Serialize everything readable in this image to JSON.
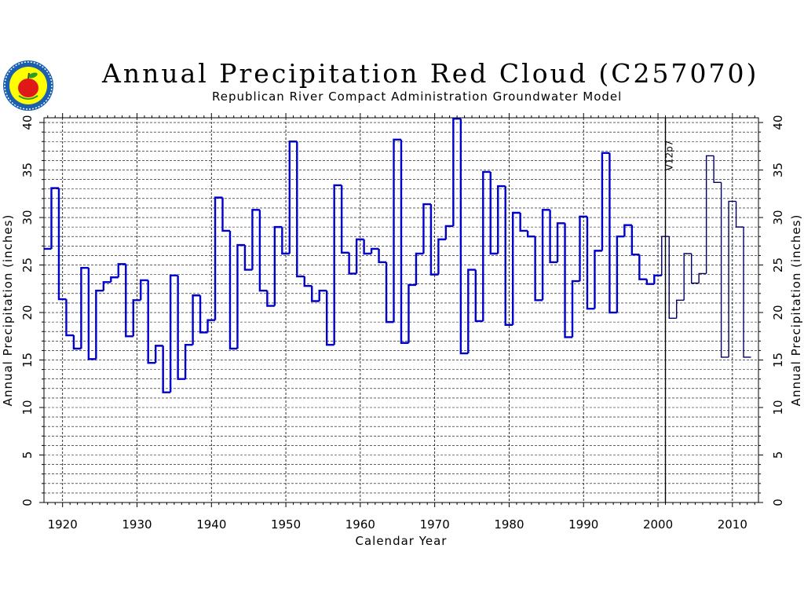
{
  "header": {
    "title": "Annual Precipitation Red Cloud (C257070)",
    "subtitle": "Republican River Compact Administration Groundwater Model"
  },
  "logo": {
    "icon": "apple-state-seal-icon"
  },
  "chart_data": {
    "type": "line",
    "step": true,
    "xlabel": "Calendar Year",
    "ylabel_left": "Annual Precipitation (inches)",
    "ylabel_right": "Annual Precipitation (inches)",
    "xlim": [
      1917.5,
      2013.5
    ],
    "ylim": [
      0,
      40.5
    ],
    "x_ticks": [
      1920,
      1930,
      1940,
      1950,
      1960,
      1970,
      1980,
      1990,
      2000,
      2010
    ],
    "y_ticks": [
      0,
      5,
      10,
      15,
      20,
      25,
      30,
      35,
      40
    ],
    "grid": true,
    "annotation": {
      "text": "V12p7",
      "x": 2001
    },
    "line_color_before": "#0000cc",
    "line_color_after": "#000066",
    "series": [
      {
        "x": [
          1918,
          1919,
          1920,
          1921,
          1922,
          1923,
          1924,
          1925,
          1926,
          1927,
          1928,
          1929,
          1930,
          1931,
          1932,
          1933,
          1934,
          1935,
          1936,
          1937,
          1938,
          1939,
          1940,
          1941,
          1942,
          1943,
          1944,
          1945,
          1946,
          1947,
          1948,
          1949,
          1950,
          1951,
          1952,
          1953,
          1954,
          1955,
          1956,
          1957,
          1958,
          1959,
          1960,
          1961,
          1962,
          1963,
          1964,
          1965,
          1966,
          1967,
          1968,
          1969,
          1970,
          1971,
          1972,
          1973,
          1974,
          1975,
          1976,
          1977,
          1978,
          1979,
          1980,
          1981,
          1982,
          1983,
          1984,
          1985,
          1986,
          1987,
          1988,
          1989,
          1990,
          1991,
          1992,
          1993,
          1994,
          1995,
          1996,
          1997,
          1998,
          1999,
          2000,
          2001,
          2002,
          2003,
          2004,
          2005,
          2006,
          2007,
          2008,
          2009,
          2010,
          2011,
          2012
        ],
        "values": [
          26.7,
          33.1,
          21.4,
          17.6,
          16.2,
          24.7,
          15.1,
          22.3,
          23.2,
          23.7,
          25.1,
          17.5,
          21.3,
          23.4,
          14.7,
          16.5,
          11.6,
          23.9,
          13.0,
          16.6,
          21.8,
          17.9,
          19.2,
          32.1,
          28.6,
          16.2,
          27.1,
          24.5,
          30.8,
          22.3,
          20.7,
          29.0,
          26.2,
          38.0,
          23.8,
          22.8,
          21.2,
          22.3,
          16.6,
          33.4,
          26.3,
          24.1,
          27.7,
          26.2,
          26.7,
          25.3,
          19.0,
          38.2,
          16.8,
          22.9,
          26.2,
          31.4,
          24.0,
          27.7,
          29.1,
          40.4,
          15.7,
          24.5,
          19.1,
          34.8,
          26.2,
          33.3,
          18.7,
          30.5,
          28.6,
          28.0,
          21.3,
          30.8,
          25.3,
          29.4,
          17.4,
          23.3,
          30.1,
          20.4,
          26.5,
          36.8,
          20.0,
          28.0,
          29.2,
          26.1,
          23.5,
          23.0,
          23.9,
          28.0,
          19.4,
          21.3,
          26.2,
          23.1,
          24.1,
          36.5,
          33.7,
          15.3,
          31.7,
          29.0,
          15.3
        ]
      }
    ]
  }
}
